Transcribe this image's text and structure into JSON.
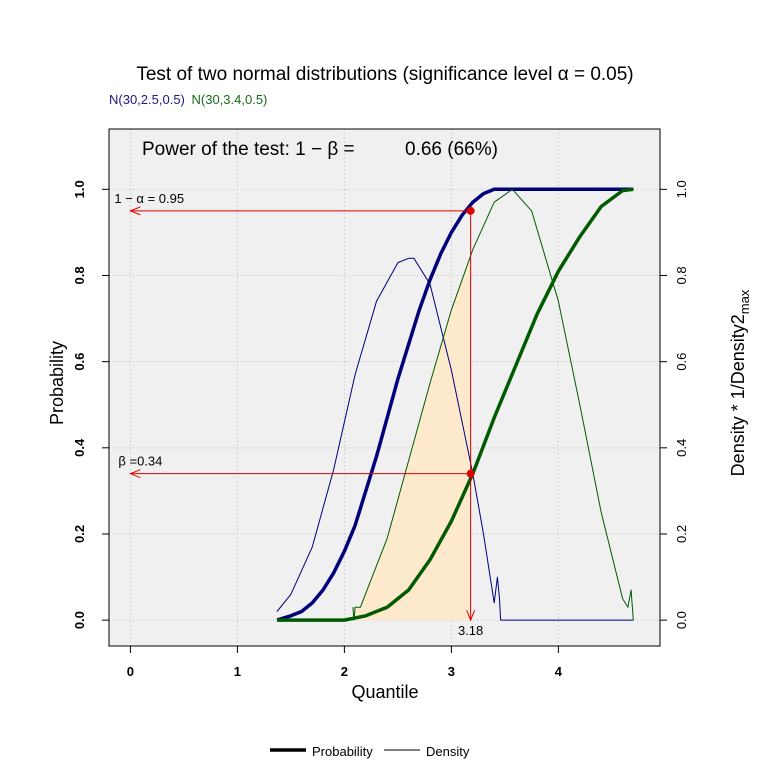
{
  "chart_data": {
    "type": "line",
    "title": "Test of two normal distributions (significance level α = 0.05)",
    "subtitle_parts": [
      {
        "text": "N(30,2.5,0.5)",
        "color": "#1a1a80"
      },
      {
        "text": "N(30,3.4,0.5)",
        "color": "#1a6a1a"
      }
    ],
    "power_label": "Power of the test: 1 − β =",
    "power_value": "0.66 (66%)",
    "xlabel": "Quantile",
    "ylabel": "Probability",
    "ylabel_right": "Density * 1/Density2",
    "ylabel_right_sub": "max",
    "xlim": [
      -0.2,
      4.95
    ],
    "ylim": [
      -0.06,
      1.14
    ],
    "grid": true,
    "x_ticks": [
      0,
      1,
      2,
      3,
      4
    ],
    "x_tick_labels": [
      "0",
      "1",
      "2",
      "3",
      "4"
    ],
    "y_ticks": [
      0.0,
      0.2,
      0.4,
      0.6,
      0.8,
      1.0
    ],
    "y_tick_labels": [
      "0.0",
      "0.2",
      "0.4",
      "0.6",
      "0.8",
      "1.0"
    ],
    "alpha_label": "1 − α = 0.95",
    "alpha_value": 0.95,
    "beta_label": "β =0.34",
    "beta_value": 0.34,
    "critical_value": 3.18,
    "critical_label": "3.18",
    "shaded_region_color": "#fde9cb",
    "series": [
      {
        "name": "N(30,2.5,0.5)",
        "color": "#00007a",
        "kind": "cdf",
        "x": [
          1.37,
          1.5,
          1.6,
          1.7,
          1.8,
          1.9,
          2.0,
          2.1,
          2.2,
          2.3,
          2.4,
          2.5,
          2.6,
          2.7,
          2.8,
          2.9,
          3.0,
          3.1,
          3.2,
          3.3,
          3.4,
          3.45,
          4.7
        ],
        "y": [
          0.0,
          0.01,
          0.02,
          0.04,
          0.07,
          0.11,
          0.16,
          0.22,
          0.3,
          0.38,
          0.47,
          0.56,
          0.64,
          0.72,
          0.79,
          0.85,
          0.9,
          0.94,
          0.97,
          0.99,
          1.0,
          1.0,
          1.0
        ]
      },
      {
        "name": "N(30,2.5,0.5)",
        "color": "#00007a",
        "kind": "density",
        "x": [
          1.37,
          1.5,
          1.7,
          1.9,
          2.1,
          2.3,
          2.5,
          2.6,
          2.65,
          2.8,
          3.0,
          3.2,
          3.3,
          3.4,
          3.43,
          3.45,
          3.46,
          3.5,
          4.7
        ],
        "y": [
          0.02,
          0.06,
          0.17,
          0.35,
          0.57,
          0.74,
          0.83,
          0.84,
          0.84,
          0.78,
          0.58,
          0.34,
          0.2,
          0.04,
          0.1,
          0.05,
          0.0,
          0.0,
          0.0
        ]
      },
      {
        "name": "N(30,3.4,0.5)",
        "color": "#005a00",
        "kind": "cdf",
        "x": [
          1.37,
          2.0,
          2.2,
          2.4,
          2.6,
          2.8,
          3.0,
          3.2,
          3.4,
          3.6,
          3.8,
          4.0,
          4.2,
          4.4,
          4.6,
          4.7
        ],
        "y": [
          0.0,
          0.0,
          0.01,
          0.03,
          0.07,
          0.14,
          0.23,
          0.34,
          0.47,
          0.59,
          0.71,
          0.81,
          0.89,
          0.96,
          0.997,
          1.0
        ]
      },
      {
        "name": "N(30,3.4,0.5)",
        "color": "#005a00",
        "kind": "density",
        "x": [
          2.08,
          2.09,
          2.1,
          2.15,
          2.4,
          2.6,
          2.8,
          3.0,
          3.2,
          3.4,
          3.57,
          3.75,
          4.0,
          4.2,
          4.4,
          4.6,
          4.65,
          4.68,
          4.7
        ],
        "y": [
          0.03,
          0.0,
          0.03,
          0.03,
          0.19,
          0.37,
          0.55,
          0.72,
          0.86,
          0.97,
          1.0,
          0.95,
          0.74,
          0.5,
          0.25,
          0.05,
          0.03,
          0.07,
          0.0
        ]
      }
    ],
    "legend": {
      "placement": "bottom-center",
      "entries": [
        {
          "label": "Probability",
          "style": "thick"
        },
        {
          "label": "Density",
          "style": "thin"
        }
      ]
    }
  }
}
